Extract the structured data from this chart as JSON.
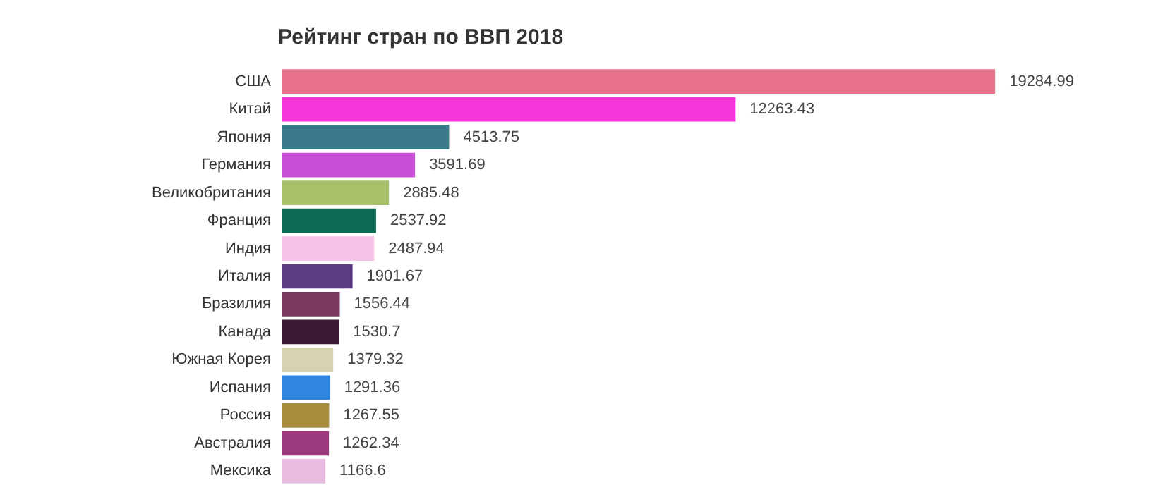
{
  "chart_data": {
    "type": "bar",
    "title": "Рейтинг стран по ВВП 2018",
    "orientation": "horizontal",
    "data_labels": true,
    "categories": [
      "США",
      "Китай",
      "Япония",
      "Германия",
      "Великобритания",
      "Франция",
      "Индия",
      "Италия",
      "Бразилия",
      "Канада",
      "Южная Корея",
      "Испания",
      "Россия",
      "Австралия",
      "Мексика"
    ],
    "values": [
      19284.99,
      12263.43,
      4513.75,
      3591.69,
      2885.48,
      2537.92,
      2487.94,
      1901.67,
      1556.44,
      1530.7,
      1379.32,
      1291.36,
      1267.55,
      1262.34,
      1166.6
    ],
    "colors": [
      "#e8718a",
      "#f536d8",
      "#3b7a8a",
      "#c94fd6",
      "#a9c06a",
      "#0a6b52",
      "#f5c2ea",
      "#5b3d86",
      "#7a3a5e",
      "#3d1a33",
      "#d6d4b0",
      "#2e86e0",
      "#a98d3e",
      "#9c3a7e",
      "#e9bde0"
    ]
  }
}
